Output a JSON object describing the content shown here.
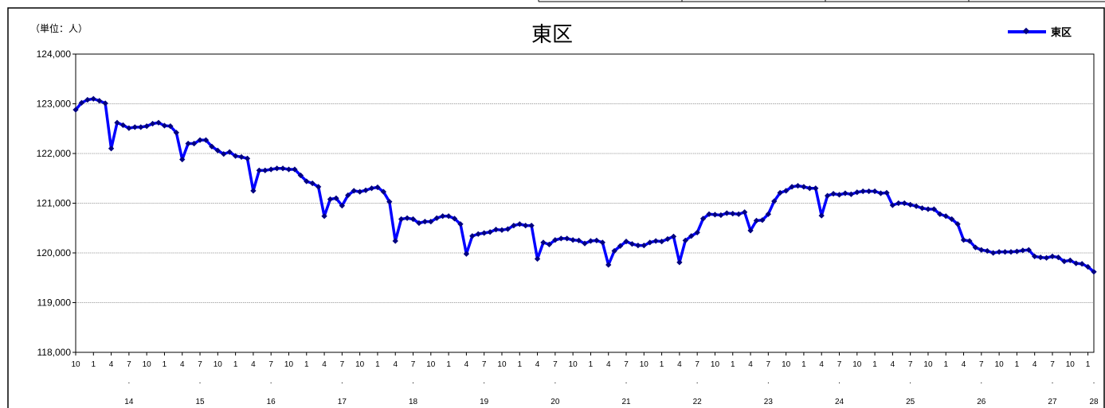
{
  "chart_data": {
    "type": "line",
    "title": "東区",
    "unit_label": "（単位：人）",
    "legend": [
      "東区"
    ],
    "legend_position": "top-right",
    "grid": true,
    "ylim": [
      118000,
      124000
    ],
    "y_ticks": [
      "118,000",
      "119,000",
      "120,000",
      "121,000",
      "122,000",
      "123,000",
      "124,000"
    ],
    "month_labels": [
      "10",
      "1",
      "4",
      "7",
      "10",
      "1",
      "4",
      "7",
      "10",
      "1",
      "4",
      "7",
      "10",
      "1",
      "4",
      "7",
      "10",
      "1",
      "4",
      "7",
      "10",
      "1",
      "4",
      "7",
      "10",
      "1",
      "4",
      "7",
      "10",
      "1",
      "4",
      "7",
      "10",
      "1",
      "4",
      "7",
      "10",
      "1",
      "4",
      "7",
      "10",
      "1",
      "4",
      "7",
      "10",
      "1",
      "4",
      "7",
      "10",
      "1",
      "4",
      "7",
      "10",
      "1",
      "4",
      "7",
      "10",
      "1"
    ],
    "year_labels": [
      "14",
      "15",
      "16",
      "17",
      "18",
      "19",
      "20",
      "21",
      "22",
      "23",
      "24",
      "25",
      "26",
      "27",
      "28"
    ],
    "series": [
      {
        "name": "東区",
        "color": "#0000ff",
        "marker_color": "#000080",
        "values": [
          122880,
          123020,
          123080,
          123100,
          123060,
          123010,
          122100,
          122620,
          122570,
          122510,
          122530,
          122530,
          122550,
          122600,
          122620,
          122560,
          122550,
          122420,
          121880,
          122200,
          122200,
          122270,
          122270,
          122140,
          122060,
          121990,
          122030,
          121950,
          121930,
          121900,
          121250,
          121660,
          121660,
          121680,
          121700,
          121700,
          121680,
          121680,
          121560,
          121440,
          121400,
          121330,
          120740,
          121080,
          121100,
          120950,
          121160,
          121250,
          121230,
          121260,
          121300,
          121320,
          121230,
          121030,
          120240,
          120680,
          120700,
          120680,
          120600,
          120630,
          120630,
          120700,
          120740,
          120740,
          120690,
          120580,
          119980,
          120340,
          120380,
          120400,
          120420,
          120470,
          120460,
          120480,
          120550,
          120580,
          120550,
          120550,
          119880,
          120210,
          120170,
          120260,
          120290,
          120290,
          120260,
          120250,
          120190,
          120240,
          120250,
          120210,
          119760,
          120040,
          120140,
          120230,
          120180,
          120150,
          120150,
          120210,
          120240,
          120230,
          120280,
          120330,
          119810,
          120250,
          120340,
          120410,
          120690,
          120780,
          120770,
          120760,
          120800,
          120790,
          120780,
          120820,
          120450,
          120650,
          120660,
          120780,
          121040,
          121210,
          121250,
          121330,
          121350,
          121330,
          121300,
          121300,
          120750,
          121150,
          121190,
          121170,
          121200,
          121180,
          121220,
          121240,
          121240,
          121240,
          121200,
          121210,
          120960,
          121000,
          121000,
          120970,
          120940,
          120900,
          120880,
          120880,
          120780,
          120740,
          120680,
          120580,
          120260,
          120240,
          120110,
          120060,
          120040,
          120000,
          120020,
          120020,
          120020,
          120030,
          120050,
          120060,
          119930,
          119910,
          119900,
          119930,
          119910,
          119830,
          119850,
          119790,
          119780,
          119720,
          119620
        ]
      }
    ]
  }
}
